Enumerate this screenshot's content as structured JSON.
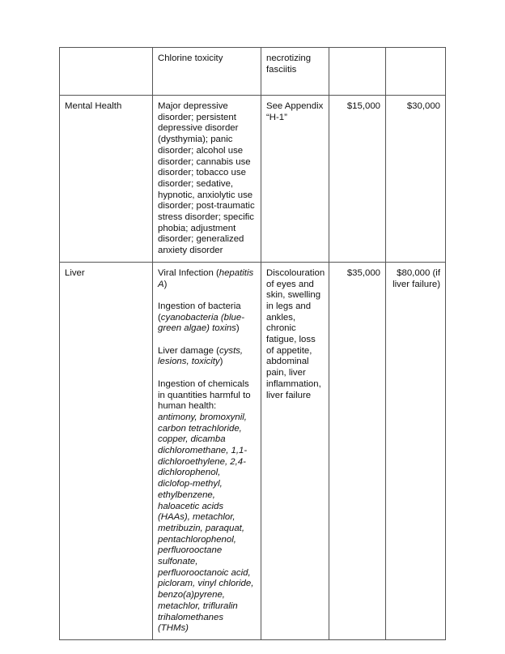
{
  "rows": [
    {
      "category": "",
      "conditions": [
        [
          {
            "t": "Chlorine toxicity"
          }
        ]
      ],
      "symptoms": "necrotizing fasciitis",
      "amount1": "",
      "amount2": ""
    },
    {
      "category": "Mental Health",
      "conditions": [
        [
          {
            "t": "Major depressive disorder; persistent depressive disorder (dysthymia); panic disorder; alcohol use disorder; cannabis use disorder; tobacco use disorder; sedative, hypnotic, anxiolytic use disorder; post-traumatic stress disorder; specific phobia; adjustment disorder; generalized anxiety disorder"
          }
        ]
      ],
      "symptoms": "See Appendix “H-1”",
      "amount1": "$15,000",
      "amount2": "$30,000"
    },
    {
      "category": "Liver",
      "conditions": [
        [
          {
            "t": "Viral Infection ("
          },
          {
            "t": "hepatitis A",
            "i": true
          },
          {
            "t": ")"
          }
        ],
        [
          {
            "t": "Ingestion of bacteria ("
          },
          {
            "t": "cyanobacteria (blue-green algae) toxins",
            "i": true
          },
          {
            "t": ")"
          }
        ],
        [
          {
            "t": "Liver damage ("
          },
          {
            "t": "cysts, lesions, toxicity",
            "i": true
          },
          {
            "t": ")"
          }
        ],
        [
          {
            "t": "Ingestion of chemicals in quantities harmful to human health: "
          },
          {
            "t": "antimony, bromoxynil, carbon tetrachloride, copper, dicamba dichloromethane, 1,1-dichloroethylene, 2,4-dichlorophenol, diclofop-methyl, ethylbenzene, haloacetic acids (HAAs), metachlor, metribuzin, paraquat, pentachlorophenol, perfluorooctane sulfonate, perfluorooctanoic acid, picloram, vinyl chloride, benzo(a)pyrene, metachlor, trifluralin trihalomethanes (THMs)",
            "i": true
          }
        ]
      ],
      "symptoms": "Discolouration of eyes and skin, swelling in legs and ankles, chronic fatigue, loss of appetite, abdominal pain, liver inflammation, liver failure",
      "amount1": "$35,000",
      "amount2": "$80,000 (if liver failure)"
    }
  ]
}
